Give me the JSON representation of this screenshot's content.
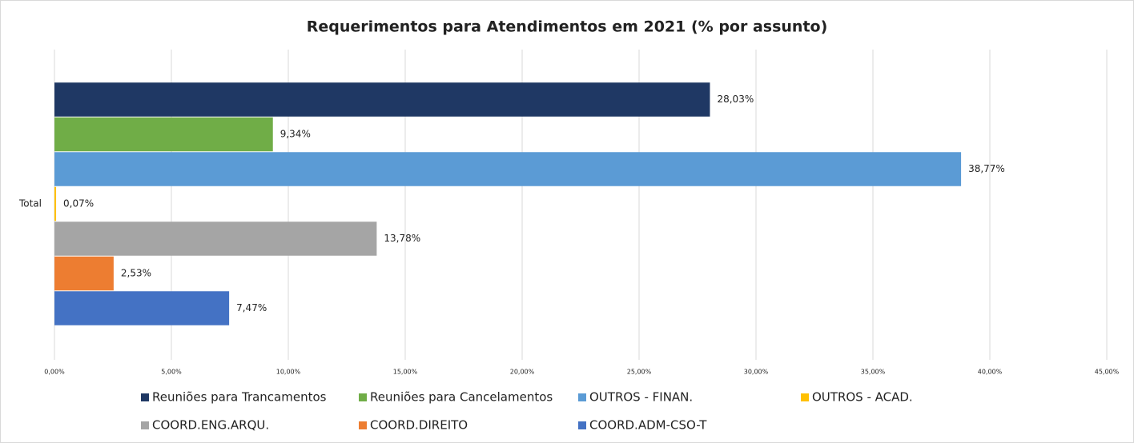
{
  "chart_data": {
    "type": "bar",
    "orientation": "horizontal",
    "title": "Requerimentos para Atendimentos em 2021 (% por assunto)",
    "categories": [
      "Total"
    ],
    "series": [
      {
        "name": "Reuniões para Trancamentos",
        "color": "#1f3864",
        "values": [
          28.03
        ],
        "value_labels": [
          "28,03%"
        ]
      },
      {
        "name": "Reuniões para Cancelamentos",
        "color": "#70ad47",
        "values": [
          9.34
        ],
        "value_labels": [
          "9,34%"
        ]
      },
      {
        "name": "OUTROS - FINAN.",
        "color": "#5b9bd5",
        "values": [
          38.77
        ],
        "value_labels": [
          "38,77%"
        ]
      },
      {
        "name": "OUTROS - ACAD.",
        "color": "#ffc000",
        "values": [
          0.07
        ],
        "value_labels": [
          "0,07%"
        ]
      },
      {
        "name": "COORD.ENG.ARQU.",
        "color": "#a5a5a5",
        "values": [
          13.78
        ],
        "value_labels": [
          "13,78%"
        ]
      },
      {
        "name": "COORD.DIREITO",
        "color": "#ed7d31",
        "values": [
          2.53
        ],
        "value_labels": [
          "2,53%"
        ]
      },
      {
        "name": "COORD.ADM-CSO-T",
        "color": "#4472c4",
        "values": [
          7.47
        ],
        "value_labels": [
          "7,47%"
        ]
      }
    ],
    "xlim": [
      0,
      45
    ],
    "xticks": [
      {
        "value": 0,
        "label": "0,00%"
      },
      {
        "value": 5,
        "label": "5,00%"
      },
      {
        "value": 10,
        "label": "10,00%"
      },
      {
        "value": 15,
        "label": "15,00%"
      },
      {
        "value": 20,
        "label": "20,00%"
      },
      {
        "value": 25,
        "label": "25,00%"
      },
      {
        "value": 30,
        "label": "30,00%"
      },
      {
        "value": 35,
        "label": "35,00%"
      },
      {
        "value": 40,
        "label": "40,00%"
      },
      {
        "value": 45,
        "label": "45,00%"
      }
    ],
    "grid": true,
    "legend": "bottom"
  }
}
